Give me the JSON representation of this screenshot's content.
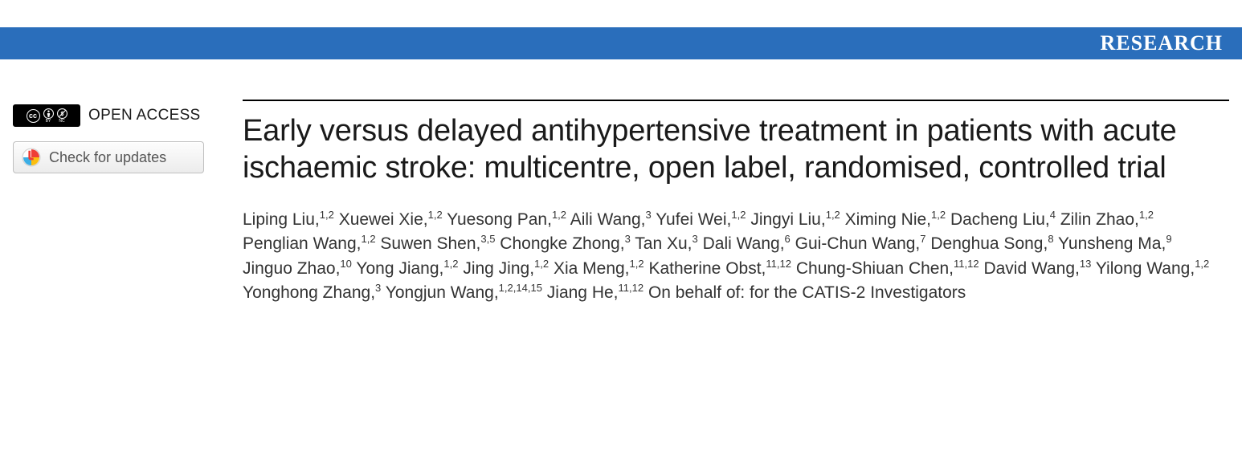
{
  "banner": {
    "label": "RESEARCH",
    "bg_color": "#2a6ebb",
    "text_color": "#ffffff"
  },
  "sidebar": {
    "open_access_label": "OPEN ACCESS",
    "cc_icons": [
      "CC",
      "BY",
      "NC"
    ],
    "updates_label": "Check for updates"
  },
  "article": {
    "title": "Early versus delayed antihypertensive treatment in patients with acute ischaemic stroke: multicentre, open label, randomised, controlled trial",
    "authors": [
      {
        "name": "Liping Liu",
        "affil": "1,2"
      },
      {
        "name": "Xuewei Xie",
        "affil": "1,2"
      },
      {
        "name": "Yuesong Pan",
        "affil": "1,2"
      },
      {
        "name": "Aili Wang",
        "affil": "3"
      },
      {
        "name": "Yufei Wei",
        "affil": "1,2"
      },
      {
        "name": "Jingyi Liu",
        "affil": "1,2"
      },
      {
        "name": "Ximing Nie",
        "affil": "1,2"
      },
      {
        "name": "Dacheng Liu",
        "affil": "4"
      },
      {
        "name": "Zilin Zhao",
        "affil": "1,2"
      },
      {
        "name": "Penglian Wang",
        "affil": "1,2"
      },
      {
        "name": "Suwen Shen",
        "affil": "3,5"
      },
      {
        "name": "Chongke Zhong",
        "affil": "3"
      },
      {
        "name": "Tan Xu",
        "affil": "3"
      },
      {
        "name": "Dali Wang",
        "affil": "6"
      },
      {
        "name": "Gui-Chun Wang",
        "affil": "7"
      },
      {
        "name": "Denghua Song",
        "affil": "8"
      },
      {
        "name": "Yunsheng Ma",
        "affil": "9"
      },
      {
        "name": "Jinguo Zhao",
        "affil": "10"
      },
      {
        "name": "Yong Jiang",
        "affil": "1,2"
      },
      {
        "name": "Jing Jing",
        "affil": "1,2"
      },
      {
        "name": "Xia Meng",
        "affil": "1,2"
      },
      {
        "name": "Katherine Obst",
        "affil": "11,12"
      },
      {
        "name": "Chung-Shiuan Chen",
        "affil": "11,12"
      },
      {
        "name": "David Wang",
        "affil": "13"
      },
      {
        "name": "Yilong Wang",
        "affil": "1,2"
      },
      {
        "name": "Yonghong Zhang",
        "affil": "3"
      },
      {
        "name": "Yongjun Wang",
        "affil": "1,2,14,15"
      },
      {
        "name": "Jiang He",
        "affil": "11,12"
      }
    ],
    "behalf_text": "On behalf of: for the CATIS-2 Investigators"
  }
}
